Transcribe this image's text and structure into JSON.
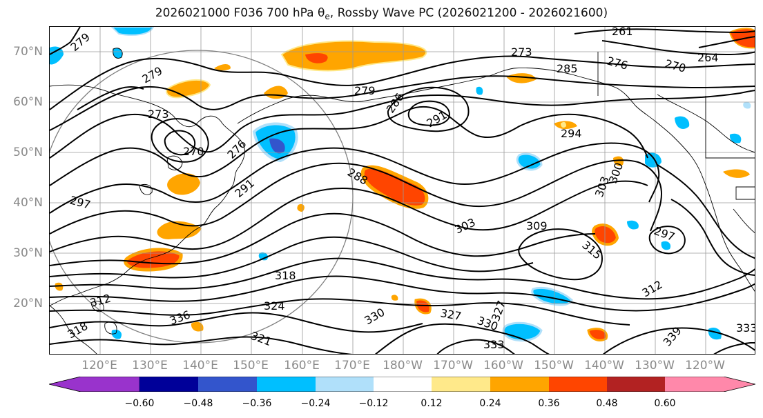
{
  "title": {
    "prefix": "2026021000 F036 700 hPa θ",
    "subscript": "e",
    "suffix": ", Rossby Wave PC (2026021200 - 2026021600)"
  },
  "map": {
    "lat_ticks": [
      "70°N",
      "60°N",
      "50°N",
      "40°N",
      "30°N",
      "20°N"
    ],
    "lon_ticks": [
      "120°E",
      "130°E",
      "140°E",
      "150°E",
      "160°E",
      "170°E",
      "180°W",
      "170°W",
      "160°W",
      "150°W",
      "140°W",
      "130°W",
      "120°W"
    ],
    "contour_labels": [
      "279",
      "279",
      "273",
      "270",
      "276",
      "291",
      "297",
      "279",
      "286",
      "291",
      "273",
      "285",
      "276",
      "270",
      "264",
      "261",
      "288",
      "294",
      "300",
      "303",
      "303",
      "309",
      "315",
      "312",
      "297",
      "318",
      "324",
      "327",
      "330",
      "330",
      "327",
      "333",
      "336",
      "321",
      "333",
      "312",
      "318",
      "339"
    ],
    "colors": {
      "contour": "#000000",
      "land_outline": "#000000",
      "grid": "#9a9a9a",
      "circle": "#808080"
    }
  },
  "colorbar": {
    "ticks": [
      "−0.60",
      "−0.48",
      "−0.36",
      "−0.24",
      "−0.12",
      "0.12",
      "0.24",
      "0.36",
      "0.48",
      "0.60"
    ],
    "colors": [
      "#9933cc",
      "#000099",
      "#3355cc",
      "#00bfff",
      "#b0e0fa",
      "#ffffff",
      "#ffe98a",
      "#ffa500",
      "#ff4500",
      "#b22222",
      "#ff88aa"
    ]
  }
}
